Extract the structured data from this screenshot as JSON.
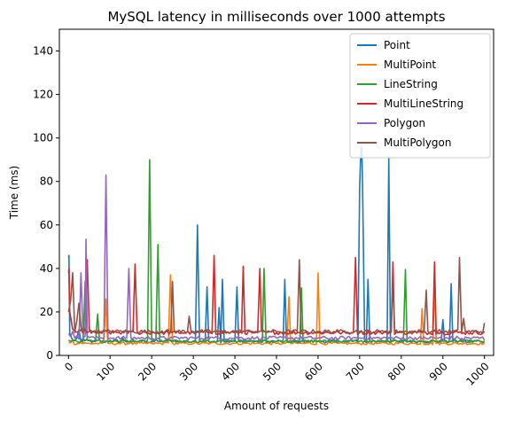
{
  "chart_data": {
    "type": "line",
    "title": "MySQL latency in milliseconds over 1000 attempts",
    "xlabel": "Amount of requests",
    "ylabel": "Time (ms)",
    "xlim": [
      -22,
      1022
    ],
    "ylim": [
      0,
      150
    ],
    "xticks": [
      0,
      100,
      200,
      300,
      400,
      500,
      600,
      700,
      800,
      900,
      1000
    ],
    "xtick_labels": [
      "0",
      "100",
      "200",
      "300",
      "400",
      "500",
      "600",
      "700",
      "800",
      "900",
      "1000"
    ],
    "yticks": [
      0,
      20,
      40,
      60,
      80,
      100,
      120,
      140
    ],
    "ytick_labels": [
      "0",
      "20",
      "40",
      "60",
      "80",
      "100",
      "120",
      "140"
    ],
    "xtick_rotation": 45,
    "grid": false,
    "legend_position": "top-right",
    "series": [
      {
        "name": "Point",
        "color": "#1f77b4",
        "baseline": 6.5,
        "noise": 0.8,
        "x": [
          0,
          1,
          2,
          3,
          10,
          20,
          25,
          35,
          60,
          100,
          130,
          160,
          175,
          190,
          215,
          240,
          290,
          300,
          310,
          320,
          333,
          350,
          362,
          370,
          400,
          405,
          450,
          480,
          500,
          520,
          560,
          580,
          600,
          650,
          700,
          703,
          705,
          707,
          712,
          720,
          750,
          770,
          790,
          805,
          850,
          880,
          900,
          920,
          960,
          1000
        ],
        "y": [
          45,
          46,
          25,
          10,
          7,
          8,
          12,
          8,
          6.5,
          7,
          8,
          6.5,
          7,
          6,
          6.5,
          7,
          6,
          6.5,
          60,
          6.5,
          31.5,
          6.5,
          22,
          35,
          6.5,
          31.5,
          6.5,
          6.5,
          6.5,
          35,
          6.5,
          6,
          6.5,
          6.5,
          78,
          95,
          96,
          78,
          6.5,
          35,
          6.5,
          91,
          6.5,
          6.5,
          6.5,
          6.5,
          16.5,
          33,
          6,
          6.5
        ]
      },
      {
        "name": "MultiPoint",
        "color": "#ff7f0e",
        "baseline": 5.5,
        "noise": 0.6,
        "x": [
          0,
          10,
          30,
          50,
          80,
          90,
          120,
          150,
          180,
          200,
          230,
          245,
          250,
          300,
          350,
          400,
          450,
          500,
          520,
          530,
          560,
          580,
          600,
          650,
          700,
          750,
          800,
          830,
          850,
          880,
          900,
          950,
          1000
        ],
        "y": [
          6,
          7,
          6,
          5.5,
          5.5,
          26,
          5.5,
          6,
          5.5,
          5.5,
          6,
          37,
          5.5,
          5.5,
          6,
          5.5,
          5.5,
          5.5,
          5.5,
          27,
          5.5,
          6,
          38,
          5.5,
          5.5,
          5.5,
          6,
          5.5,
          21.5,
          33,
          5.5,
          5.5,
          6
        ]
      },
      {
        "name": "LineString",
        "color": "#2ca02c",
        "baseline": 6.5,
        "noise": 0.6,
        "x": [
          0,
          10,
          30,
          40,
          50,
          60,
          70,
          100,
          140,
          160,
          180,
          195,
          200,
          210,
          215,
          250,
          300,
          350,
          400,
          450,
          470,
          480,
          520,
          540,
          560,
          600,
          650,
          700,
          760,
          780,
          800,
          810,
          850,
          900,
          1000
        ],
        "y": [
          7,
          7,
          6.5,
          34,
          7,
          6.5,
          19,
          6.5,
          7,
          6.5,
          7,
          90,
          6.5,
          7,
          51,
          6.5,
          6.5,
          6.5,
          7,
          6.5,
          40,
          6.5,
          6.5,
          6.5,
          31,
          6.5,
          6.5,
          6.5,
          6.5,
          6.5,
          6.5,
          39.5,
          6.5,
          6.5,
          6.5
        ]
      },
      {
        "name": "MultiLineString",
        "color": "#d62728",
        "baseline": 10.5,
        "noise": 0.9,
        "x": [
          0,
          1,
          3,
          10,
          30,
          40,
          45,
          50,
          80,
          110,
          150,
          160,
          165,
          180,
          200,
          250,
          300,
          340,
          350,
          400,
          420,
          450,
          460,
          500,
          550,
          600,
          650,
          680,
          690,
          700,
          750,
          780,
          800,
          850,
          880,
          900,
          950,
          1000
        ],
        "y": [
          38,
          40,
          20,
          12,
          12,
          13,
          44,
          12,
          11,
          11,
          11,
          42,
          11,
          11,
          10.5,
          10.5,
          10.5,
          10.5,
          46,
          10.5,
          41,
          10.5,
          40,
          10.5,
          10.5,
          10.5,
          10.5,
          10.5,
          45,
          10.5,
          10.5,
          43,
          10.5,
          10.5,
          43,
          10.5,
          10.5,
          11
        ]
      },
      {
        "name": "Polygon",
        "color": "#9467bd",
        "baseline": 8,
        "noise": 0.8,
        "x": [
          0,
          10,
          20,
          30,
          40,
          42,
          45,
          60,
          80,
          90,
          100,
          140,
          145,
          150,
          180,
          200,
          250,
          300,
          350,
          400,
          450,
          500,
          550,
          600,
          650,
          700,
          750,
          800,
          850,
          900,
          950,
          1000
        ],
        "y": [
          10,
          11,
          9,
          38,
          9,
          53.5,
          9,
          8.5,
          8,
          83,
          8,
          8,
          40,
          8,
          8,
          8,
          8,
          8,
          8,
          8,
          8,
          8,
          8,
          8,
          7.5,
          8,
          7.5,
          7.5,
          7.5,
          7,
          7,
          7
        ]
      },
      {
        "name": "MultiPolygon",
        "color": "#8c564b",
        "baseline": 11,
        "noise": 0.9,
        "x": [
          0,
          5,
          10,
          20,
          25,
          30,
          40,
          60,
          100,
          150,
          200,
          250,
          290,
          300,
          350,
          400,
          450,
          500,
          550,
          555,
          600,
          650,
          700,
          750,
          780,
          800,
          850,
          860,
          900,
          940,
          950,
          1000
        ],
        "y": [
          20,
          25,
          38,
          16,
          24,
          13,
          12,
          11,
          11,
          11,
          11,
          34,
          18,
          11,
          11,
          11,
          11,
          11,
          11,
          44,
          11,
          11,
          11,
          11,
          35,
          11,
          11,
          30,
          11,
          45,
          17,
          15
        ]
      }
    ]
  }
}
